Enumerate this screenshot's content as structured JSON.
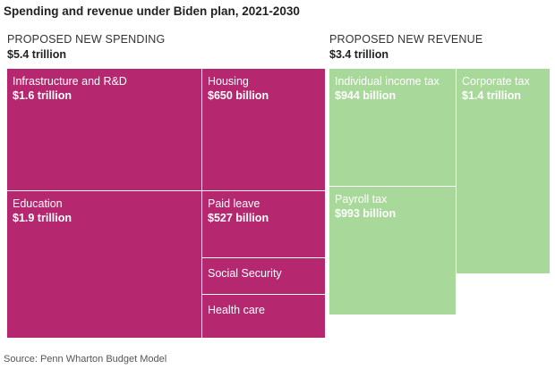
{
  "title": "Spending and revenue under Biden plan, 2021-2030",
  "source": "Source: Penn Wharton Budget Model",
  "chart_data": [
    {
      "type": "treemap",
      "panel_label": "PROPOSED NEW SPENDING",
      "total": "$5.4 trillion",
      "color": "#b5286f",
      "items": [
        {
          "label": "Infrastructure and R&D",
          "amount": "$1.6 trillion",
          "value": 1600
        },
        {
          "label": "Housing",
          "amount": "$650 billion",
          "value": 650
        },
        {
          "label": "Education",
          "amount": "$1.9 trillion",
          "value": 1900
        },
        {
          "label": "Paid leave",
          "amount": "$527 billion",
          "value": 527
        },
        {
          "label": "Social Security",
          "amount": "",
          "value": null
        },
        {
          "label": "Health care",
          "amount": "",
          "value": null
        }
      ]
    },
    {
      "type": "treemap",
      "panel_label": "PROPOSED NEW REVENUE",
      "total": "$3.4 trillion",
      "color": "#a8d89a",
      "items": [
        {
          "label": "Individual income tax",
          "amount": "$944 billion",
          "value": 944
        },
        {
          "label": "Corporate tax",
          "amount": "$1.4 trillion",
          "value": 1400
        },
        {
          "label": "Payroll tax",
          "amount": "$993 billion",
          "value": 993
        }
      ]
    }
  ]
}
